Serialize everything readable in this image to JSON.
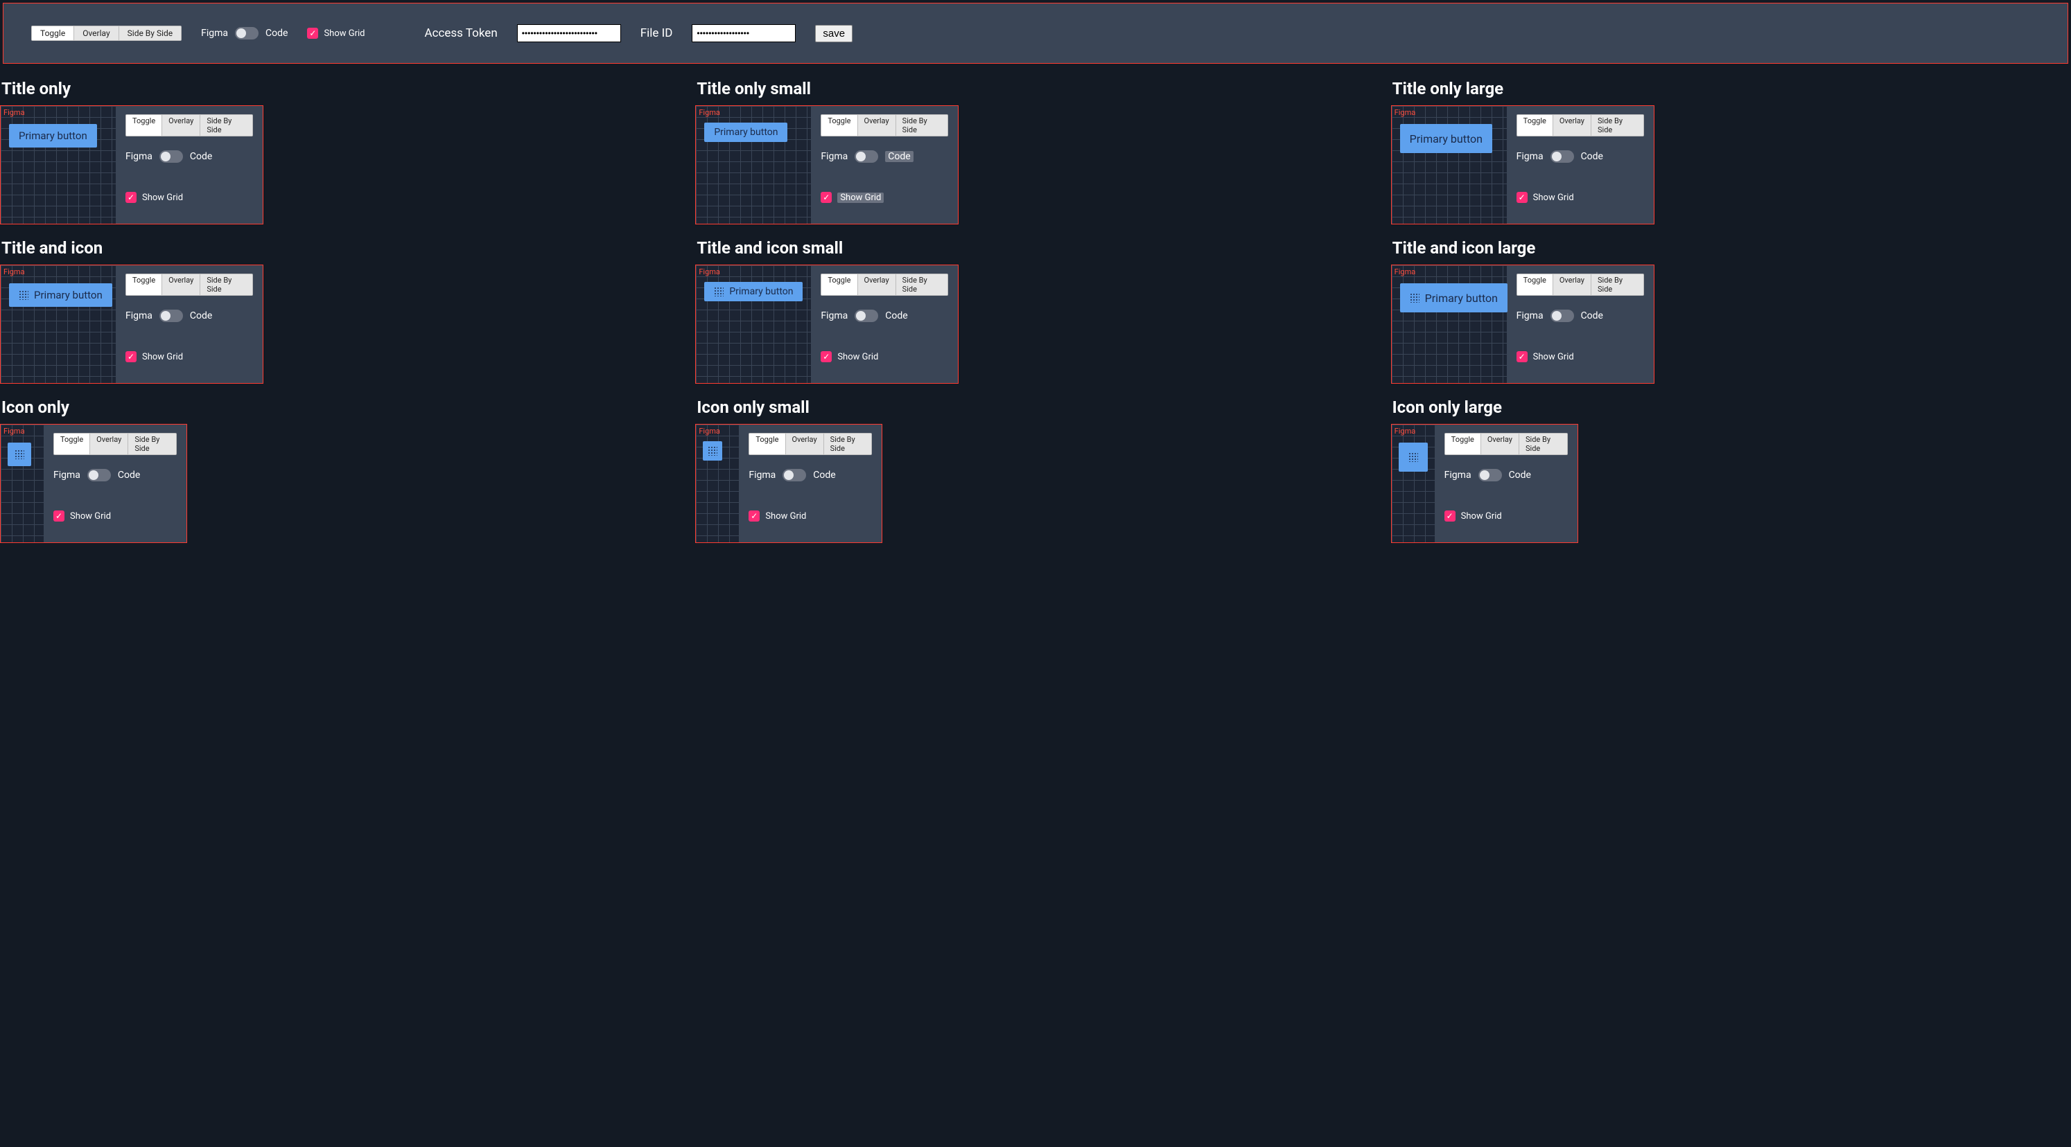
{
  "colors": {
    "background": "#131a24",
    "panel": "#3a4556",
    "panel_dark": "#1c2433",
    "border_red": "#ff3b30",
    "figma_red": "#ff4d3d",
    "button_blue": "#5ea1ee",
    "checkbox_pink": "#ff2d78",
    "segment_bg": "#e6e6e6",
    "segment_active": "#ffffff",
    "toggle_track": "#6b7280",
    "grid_line": "#3a4556"
  },
  "seg": {
    "toggle": "Toggle",
    "overlay": "Overlay",
    "sbs": "Side By Side"
  },
  "figma_code": {
    "figma": "Figma",
    "code": "Code"
  },
  "show_grid": "Show Grid",
  "topbar": {
    "access_token_label": "Access Token",
    "access_token_value": "••••••••••••••••••••••••••",
    "file_id_label": "File ID",
    "file_id_value": "••••••••••••••••••",
    "save": "save"
  },
  "figma_tag": "Figma",
  "primary_button": "Primary button",
  "variants": [
    {
      "title": "Title only",
      "size": "md",
      "has_title": true,
      "has_icon": false,
      "layout": "full",
      "hl_code": false,
      "hl_grid": false
    },
    {
      "title": "Title only small",
      "size": "sm",
      "has_title": true,
      "has_icon": false,
      "layout": "full",
      "hl_code": true,
      "hl_grid": true
    },
    {
      "title": "Title only large",
      "size": "lg",
      "has_title": true,
      "has_icon": false,
      "layout": "full",
      "hl_code": false,
      "hl_grid": false
    },
    {
      "title": "Title and icon",
      "size": "md",
      "has_title": true,
      "has_icon": true,
      "layout": "full",
      "hl_code": false,
      "hl_grid": false
    },
    {
      "title": "Title and icon small",
      "size": "sm",
      "has_title": true,
      "has_icon": true,
      "layout": "full",
      "hl_code": false,
      "hl_grid": false
    },
    {
      "title": "Title and icon large",
      "size": "lg",
      "has_title": true,
      "has_icon": true,
      "layout": "full",
      "hl_code": false,
      "hl_grid": false
    },
    {
      "title": "Icon only",
      "size": "md",
      "has_title": false,
      "has_icon": true,
      "layout": "narrow",
      "hl_code": false,
      "hl_grid": false
    },
    {
      "title": "Icon only small",
      "size": "sm",
      "has_title": false,
      "has_icon": true,
      "layout": "narrow",
      "hl_code": false,
      "hl_grid": false
    },
    {
      "title": "Icon only large",
      "size": "lg",
      "has_title": false,
      "has_icon": true,
      "layout": "narrow",
      "hl_code": false,
      "hl_grid": false
    }
  ]
}
